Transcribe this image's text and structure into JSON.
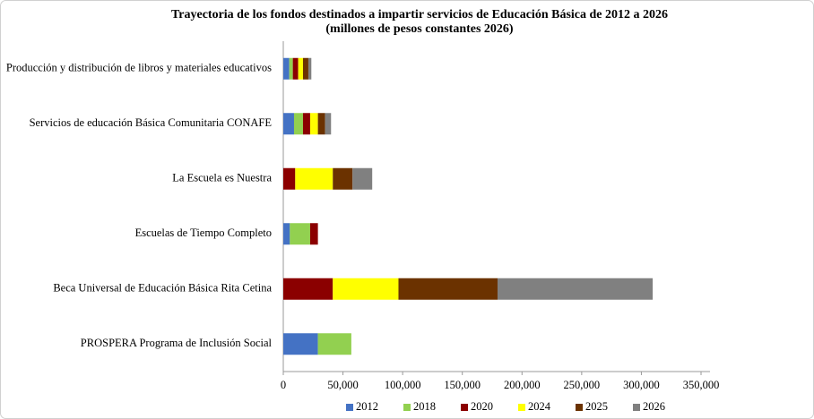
{
  "chart_data": {
    "type": "stacked-barh",
    "title": "Trayectoria de los fondos destinados a impartir servicios de Educación Básica de 2012 a 2026",
    "subtitle": "(millones de pesos constantes 2026)",
    "categories": [
      "Producción y distribución de libros y materiales educativos",
      "Servicios de educación Básica Comunitaria CONAFE",
      "La Escuela es Nuestra",
      "Escuelas de Tiempo Completo",
      "Beca Universal de Educación Básica Rita Cetina",
      "PROSPERA Programa de Inclusión Social"
    ],
    "series": [
      {
        "name": "2012",
        "color": "#4472c4",
        "values": [
          5000,
          9000,
          0,
          5500,
          0,
          29000
        ]
      },
      {
        "name": "2018",
        "color": "#92d050",
        "values": [
          3000,
          7500,
          0,
          17000,
          0,
          28000
        ]
      },
      {
        "name": "2020",
        "color": "#8b0000",
        "values": [
          4500,
          6000,
          10000,
          6500,
          41500,
          0
        ]
      },
      {
        "name": "2024",
        "color": "#ffff00",
        "values": [
          4000,
          6500,
          31500,
          0,
          55000,
          0
        ]
      },
      {
        "name": "2025",
        "color": "#6b3200",
        "values": [
          4500,
          6000,
          16500,
          0,
          83000,
          0
        ]
      },
      {
        "name": "2026",
        "color": "#808080",
        "values": [
          2500,
          5000,
          16500,
          0,
          130000,
          0
        ]
      }
    ],
    "xlim": [
      0,
      350000
    ],
    "xticks": [
      0,
      {
        "value": 50000,
        "label": "50,000"
      },
      {
        "value": 100000,
        "label": "100,000"
      },
      {
        "value": 150000,
        "label": "150,000"
      },
      {
        "value": 200000,
        "label": "200,000"
      },
      {
        "value": 250000,
        "label": "250,000"
      },
      {
        "value": 300000,
        "label": "300,000"
      },
      {
        "value": 350000,
        "label": "350,000"
      }
    ],
    "legend": "bottom"
  }
}
